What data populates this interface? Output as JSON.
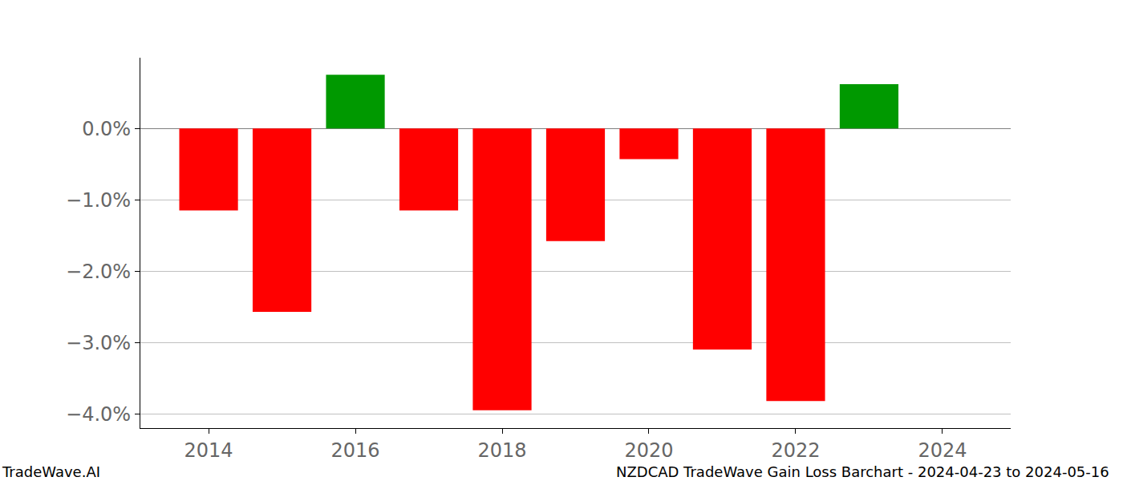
{
  "chart_data": {
    "type": "bar",
    "x": [
      2014,
      2015,
      2016,
      2017,
      2018,
      2019,
      2020,
      2021,
      2022,
      2023
    ],
    "values": [
      -1.15,
      -2.57,
      0.75,
      -1.15,
      -3.95,
      -1.58,
      -0.43,
      -3.1,
      -3.82,
      0.62
    ],
    "colors": [
      "#ff0000",
      "#ff0000",
      "#009900",
      "#ff0000",
      "#ff0000",
      "#ff0000",
      "#ff0000",
      "#ff0000",
      "#ff0000",
      "#009900"
    ],
    "xlim": [
      2013.07,
      2024.93
    ],
    "xticks": [
      2014,
      2016,
      2018,
      2020,
      2022,
      2024
    ],
    "ylim": [
      -4.2,
      0.99
    ],
    "yticks": [
      {
        "value": -4,
        "label": "−4.0%"
      },
      {
        "value": -3,
        "label": "−3.0%"
      },
      {
        "value": -2,
        "label": "−2.0%"
      },
      {
        "value": -1,
        "label": "−1.0%"
      },
      {
        "value": 0,
        "label": "0.0%"
      }
    ],
    "grid": true,
    "annotations": [
      "TradeWave.AI",
      "NZDCAD TradeWave Gain Loss Barchart - 2024-04-23 to 2024-05-16"
    ]
  }
}
